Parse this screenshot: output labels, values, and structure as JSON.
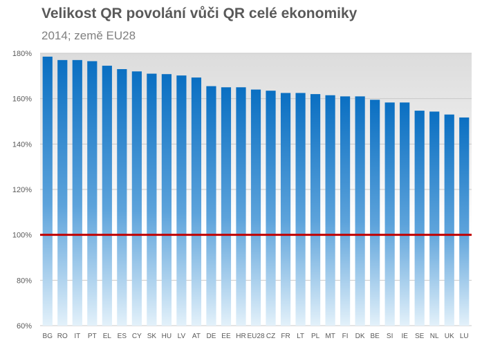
{
  "header": {
    "title": "Velikost QR povolání vůči QR celé ekonomiky",
    "subtitle": "2014; země EU28"
  },
  "colors": {
    "bar_top": "#0a6fc2",
    "bar_mid": "#5da3db",
    "bar_bottom": "#e3f1fa",
    "plot_band": "#dcdcdc",
    "grid": "#c8c8c8",
    "reference_line": "#c00000"
  },
  "chart_data": {
    "type": "bar",
    "title": "Velikost QR povolání vůči QR celé ekonomiky",
    "subtitle": "2014; země EU28",
    "xlabel": "",
    "ylabel": "",
    "categories": [
      "BG",
      "RO",
      "IT",
      "PT",
      "EL",
      "ES",
      "CY",
      "SK",
      "HU",
      "LV",
      "AT",
      "DE",
      "EE",
      "HR",
      "EU28",
      "CZ",
      "FR",
      "LT",
      "PL",
      "MT",
      "FI",
      "DK",
      "BE",
      "SI",
      "IE",
      "SE",
      "NL",
      "UK",
      "LU"
    ],
    "values": [
      178.5,
      177,
      177,
      176.5,
      174.5,
      173,
      172,
      171,
      170.8,
      170.2,
      169.3,
      165.5,
      165,
      165,
      164,
      163.5,
      162.5,
      162.5,
      162,
      161.5,
      161,
      161,
      159.5,
      158.3,
      158.3,
      154.7,
      154.3,
      153,
      151.7
    ],
    "ylim": [
      60,
      180
    ],
    "yticks": [
      "60%",
      "80%",
      "100%",
      "120%",
      "140%",
      "160%",
      "180%"
    ],
    "ytick_values": [
      60,
      80,
      100,
      120,
      140,
      160,
      180
    ],
    "reference_line": 100,
    "grid": true,
    "legend": "none"
  }
}
